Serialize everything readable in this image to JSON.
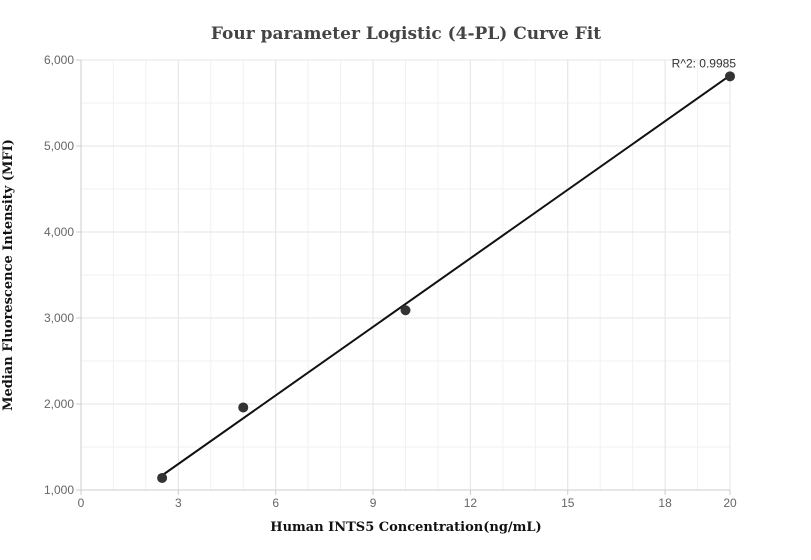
{
  "chart_data": {
    "type": "scatter",
    "title": "Four parameter Logistic (4-PL) Curve Fit",
    "xlabel": "Human INTS5 Concentration(ng/mL)",
    "ylabel": "Median Fluorescence Intensity (MFI)",
    "xlim": [
      0,
      20
    ],
    "ylim": [
      1000,
      6000
    ],
    "x_ticks": [
      0,
      3,
      6,
      9,
      12,
      15,
      18,
      20
    ],
    "x_tick_labels": [
      "0",
      "3",
      "6",
      "9",
      "12",
      "15",
      "18",
      "20"
    ],
    "y_ticks": [
      1000,
      2000,
      3000,
      4000,
      5000,
      6000
    ],
    "y_tick_labels": [
      "1,000",
      "2,000",
      "3,000",
      "4,000",
      "5,000",
      "6,000"
    ],
    "grid": true,
    "points": [
      {
        "x": 2.5,
        "y": 1140
      },
      {
        "x": 5,
        "y": 1960
      },
      {
        "x": 10,
        "y": 3090
      },
      {
        "x": 20,
        "y": 5810
      }
    ],
    "fit_line": [
      {
        "x": 2.5,
        "y": 1170
      },
      {
        "x": 20,
        "y": 5820
      }
    ],
    "annotation": {
      "text": "R^2: 0.9985",
      "x": 20,
      "y": 5810
    },
    "colors": {
      "points": "#333333",
      "fit_line": "#111111",
      "grid": "#e6e6e6",
      "axis": "#cccccc"
    }
  }
}
